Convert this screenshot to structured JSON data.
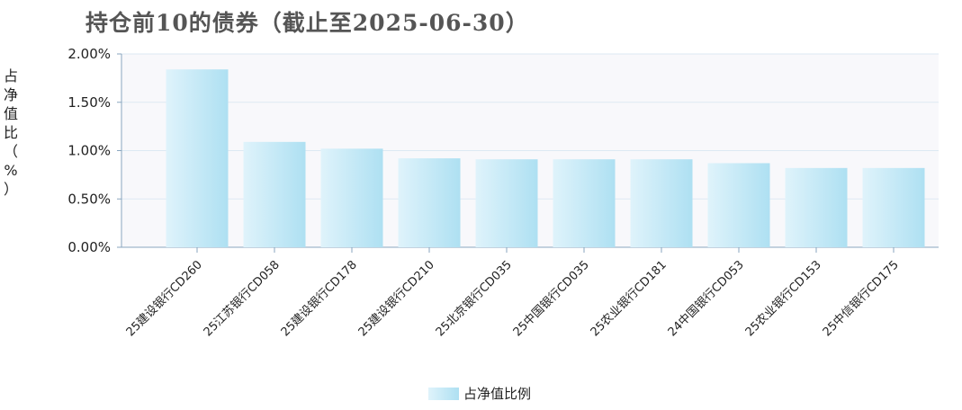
{
  "chart_data": {
    "type": "bar",
    "title": "持仓前10的债券（截止至2025-06-30）",
    "ylabel": "占净值比（%）",
    "categories": [
      "25建设银行CD260",
      "25江苏银行CD058",
      "25建设银行CD178",
      "25建设银行CD210",
      "25北京银行CD035",
      "25中国银行CD035",
      "25农业银行CD181",
      "24中国银行CD053",
      "25农业银行CD153",
      "25中信银行CD175"
    ],
    "series": [
      {
        "name": "占净值比例",
        "values": [
          1.84,
          1.09,
          1.02,
          0.92,
          0.91,
          0.91,
          0.91,
          0.87,
          0.82,
          0.82
        ]
      }
    ],
    "y_ticks": [
      "0.00%",
      "0.50%",
      "1.00%",
      "1.50%",
      "2.00%"
    ],
    "ylim": [
      0,
      2
    ],
    "grid": true,
    "legend_position": "bottom-center",
    "colors": {
      "bar_light": "#dff3fb",
      "bar_dark": "#aee0f2",
      "grid": "#dde9f3",
      "axis": "#8aa6bf",
      "plot_bg": "#f8f8fb"
    }
  }
}
